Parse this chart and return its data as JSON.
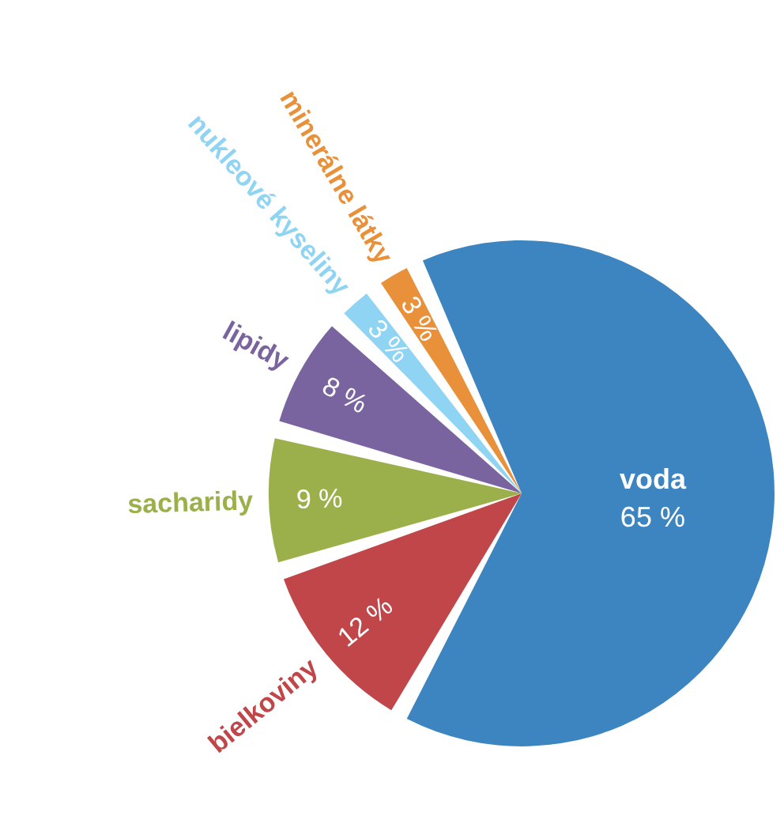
{
  "chart_data": {
    "type": "pie",
    "categories": [
      "voda",
      "bielkoviny",
      "sacharidy",
      "lipidy",
      "nukleové kyseliny",
      "minerálne látky"
    ],
    "values": [
      65,
      12,
      9,
      8,
      3,
      3
    ],
    "value_labels": [
      "65 %",
      "12 %",
      "9 %",
      "8 %",
      "3 %",
      "3 %"
    ],
    "colors": [
      "#3d85c0",
      "#c0464a",
      "#9bb04a",
      "#7a64a0",
      "#8fd4f2",
      "#e8913a"
    ],
    "legend": false
  }
}
